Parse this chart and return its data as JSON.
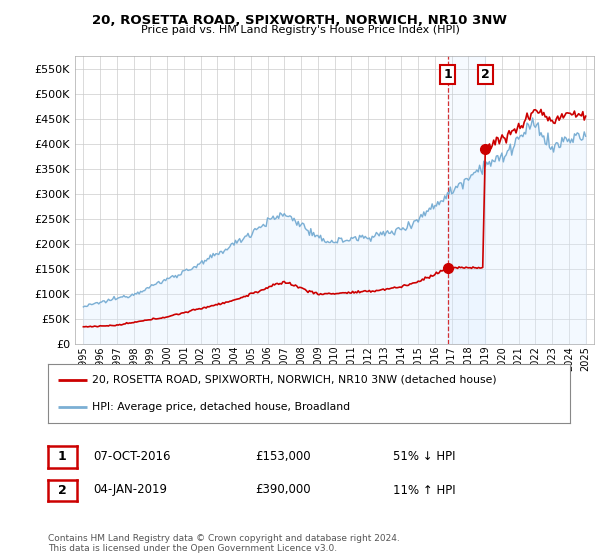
{
  "title": "20, ROSETTA ROAD, SPIXWORTH, NORWICH, NR10 3NW",
  "subtitle": "Price paid vs. HM Land Registry's House Price Index (HPI)",
  "legend_line1": "20, ROSETTA ROAD, SPIXWORTH, NORWICH, NR10 3NW (detached house)",
  "legend_line2": "HPI: Average price, detached house, Broadland",
  "annotation1": {
    "num": "1",
    "date": "07-OCT-2016",
    "price": "£153,000",
    "pct": "51% ↓ HPI"
  },
  "annotation2": {
    "num": "2",
    "date": "04-JAN-2019",
    "price": "£390,000",
    "pct": "11% ↑ HPI"
  },
  "footer": "Contains HM Land Registry data © Crown copyright and database right 2024.\nThis data is licensed under the Open Government Licence v3.0.",
  "property_color": "#cc0000",
  "hpi_color": "#7bafd4",
  "hpi_fill_color": "#ddeeff",
  "background_color": "#ffffff",
  "grid_color": "#cccccc",
  "sale1_x": 2016.77,
  "sale1_y": 153000,
  "sale2_x": 2019.01,
  "sale2_y": 390000,
  "ylim": [
    0,
    575000
  ],
  "xlim_start": 1994.5,
  "xlim_end": 2025.5,
  "yticks": [
    0,
    50000,
    100000,
    150000,
    200000,
    250000,
    300000,
    350000,
    400000,
    450000,
    500000,
    550000
  ],
  "xticks": [
    1995,
    1996,
    1997,
    1998,
    1999,
    2000,
    2001,
    2002,
    2003,
    2004,
    2005,
    2006,
    2007,
    2008,
    2009,
    2010,
    2011,
    2012,
    2013,
    2014,
    2015,
    2016,
    2017,
    2018,
    2019,
    2020,
    2021,
    2022,
    2023,
    2024,
    2025
  ]
}
